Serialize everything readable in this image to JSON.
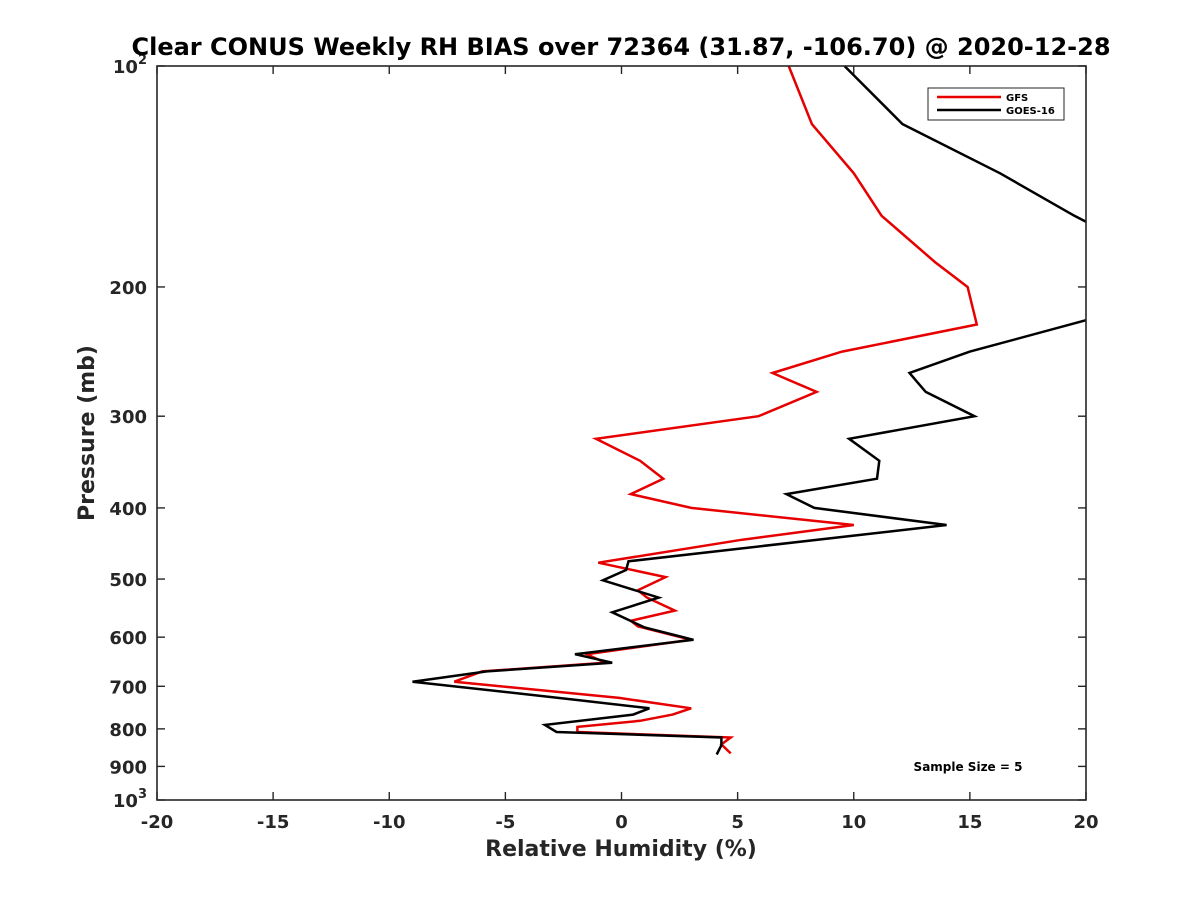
{
  "chart_data": {
    "type": "line",
    "title": "Clear CONUS Weekly RH BIAS over 72364 (31.87, -106.70) @ 2020-12-28",
    "xlabel": "Relative Humidity (%)",
    "ylabel": "Pressure (mb)",
    "xlim": [
      -20,
      20
    ],
    "ylim": [
      100,
      1000
    ],
    "y_scale": "log",
    "y_reversed": true,
    "grid": false,
    "legend_position": "top-right",
    "x_ticks": [
      "-20",
      "-15",
      "-10",
      "-5",
      "0",
      "5",
      "10",
      "15",
      "20"
    ],
    "y_ticks": [
      {
        "value": 100,
        "base": "10",
        "exp": "2"
      },
      {
        "value": 200,
        "label": "200"
      },
      {
        "value": 300,
        "label": "300"
      },
      {
        "value": 400,
        "label": "400"
      },
      {
        "value": 500,
        "label": "500"
      },
      {
        "value": 600,
        "label": "600"
      },
      {
        "value": 700,
        "label": "700"
      },
      {
        "value": 800,
        "label": "800"
      },
      {
        "value": 900,
        "label": "900"
      },
      {
        "value": 1000,
        "base": "10",
        "exp": "3"
      }
    ],
    "annotation": "Sample Size = 5",
    "series": [
      {
        "name": "GFS",
        "color": "#e60000",
        "points": [
          [
            7.2,
            100
          ],
          [
            8.2,
            120
          ],
          [
            10.0,
            140
          ],
          [
            11.2,
            160
          ],
          [
            13.5,
            185
          ],
          [
            14.9,
            200
          ],
          [
            15.3,
            225
          ],
          [
            9.5,
            245
          ],
          [
            6.5,
            262
          ],
          [
            8.4,
            278
          ],
          [
            5.9,
            300
          ],
          [
            -1.1,
            322
          ],
          [
            0.8,
            345
          ],
          [
            1.8,
            365
          ],
          [
            0.4,
            383
          ],
          [
            3.0,
            400
          ],
          [
            10.0,
            422
          ],
          [
            5.2,
            442
          ],
          [
            -1.0,
            475
          ],
          [
            1.9,
            497
          ],
          [
            0.7,
            518
          ],
          [
            1.1,
            530
          ],
          [
            2.3,
            552
          ],
          [
            0.4,
            570
          ],
          [
            0.7,
            580
          ],
          [
            3.0,
            605
          ],
          [
            -1.5,
            633
          ],
          [
            -0.7,
            650
          ],
          [
            -6.0,
            668
          ],
          [
            -7.2,
            690
          ],
          [
            -0.1,
            726
          ],
          [
            3.0,
            750
          ],
          [
            2.2,
            765
          ],
          [
            0.8,
            780
          ],
          [
            -1.9,
            795
          ],
          [
            -1.9,
            808
          ],
          [
            4.7,
            822
          ],
          [
            4.3,
            840
          ],
          [
            4.7,
            864
          ]
        ]
      },
      {
        "name": "GOES-16",
        "color": "#000000",
        "points": [
          [
            9.6,
            100
          ],
          [
            12.1,
            120
          ],
          [
            16.3,
            140
          ],
          [
            19.5,
            160
          ],
          [
            20.0,
            163
          ],
          [
            null,
            null
          ],
          [
            20.0,
            222
          ],
          [
            15.0,
            245
          ],
          [
            12.4,
            262
          ],
          [
            13.1,
            278
          ],
          [
            15.2,
            300
          ],
          [
            9.8,
            322
          ],
          [
            11.1,
            345
          ],
          [
            11.0,
            365
          ],
          [
            7.1,
            383
          ],
          [
            8.3,
            400
          ],
          [
            14.0,
            422
          ],
          [
            0.3,
            473
          ],
          [
            0.2,
            486
          ],
          [
            -0.8,
            502
          ],
          [
            1.6,
            530
          ],
          [
            -0.4,
            555
          ],
          [
            1.0,
            582
          ],
          [
            3.1,
            605
          ],
          [
            -2.0,
            633
          ],
          [
            -0.4,
            650
          ],
          [
            -5.8,
            668
          ],
          [
            -9.0,
            690
          ],
          [
            -2.0,
            730
          ],
          [
            1.2,
            750
          ],
          [
            0.5,
            765
          ],
          [
            -3.3,
            790
          ],
          [
            -2.8,
            808
          ],
          [
            4.3,
            822
          ],
          [
            4.3,
            842
          ],
          [
            4.1,
            867
          ]
        ]
      }
    ]
  }
}
